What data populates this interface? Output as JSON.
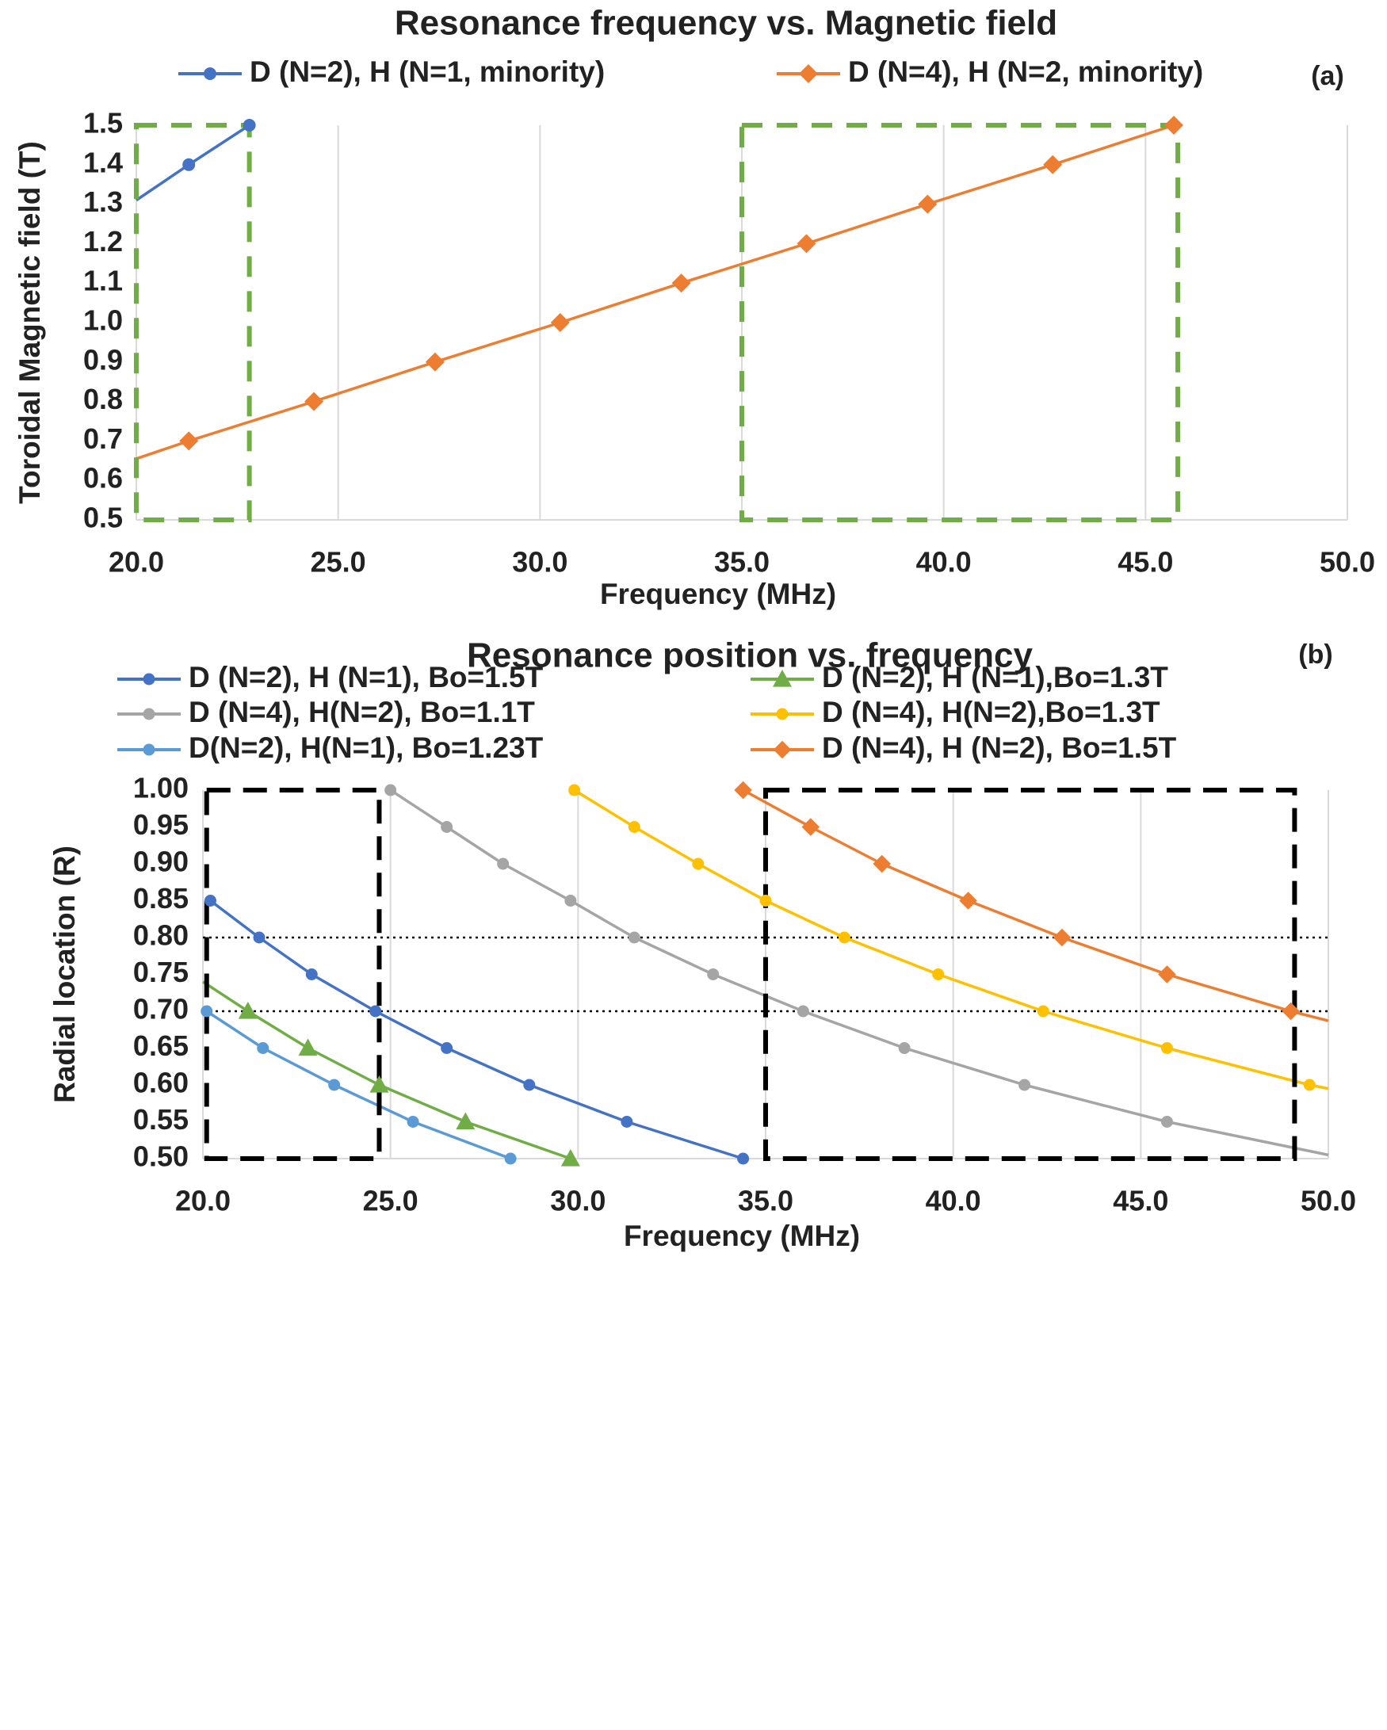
{
  "chart_data": [
    {
      "type": "line",
      "panel_label": "(a)",
      "title": "Resonance frequency vs. Magnetic field",
      "xlabel": "Frequency (MHz)",
      "ylabel": "Toroidal Magnetic field (T)",
      "xlim": [
        20,
        50
      ],
      "ylim": [
        0.5,
        1.5
      ],
      "x_ticks": [
        "20.0",
        "25.0",
        "30.0",
        "35.0",
        "40.0",
        "45.0",
        "50.0"
      ],
      "y_ticks": [
        "0.5",
        "0.6",
        "0.7",
        "0.8",
        "0.9",
        "1.0",
        "1.1",
        "1.2",
        "1.3",
        "1.4",
        "1.5"
      ],
      "grid": "vertical",
      "legend_position": "top",
      "series": [
        {
          "name": "D (N=2), H (N=1, minority)",
          "color": "#4472C4",
          "marker": "circle",
          "points": [
            [
              20.0,
              1.31
            ],
            [
              21.3,
              1.4
            ],
            [
              22.8,
              1.5
            ]
          ],
          "marked": [
            false,
            true,
            true
          ]
        },
        {
          "name": "D (N=4), H (N=2, minority)",
          "color": "#ED7D31",
          "marker": "diamond",
          "points": [
            [
              20.0,
              0.655
            ],
            [
              21.3,
              0.7
            ],
            [
              24.4,
              0.8
            ],
            [
              27.4,
              0.9
            ],
            [
              30.5,
              1.0
            ],
            [
              33.5,
              1.1
            ],
            [
              36.6,
              1.2
            ],
            [
              39.6,
              1.3
            ],
            [
              42.7,
              1.4
            ],
            [
              45.7,
              1.5
            ]
          ],
          "marked": [
            false,
            true,
            true,
            true,
            true,
            true,
            true,
            true,
            true,
            true
          ]
        }
      ],
      "regions": [
        {
          "color": "#70AD47",
          "x": [
            20.0,
            22.8
          ],
          "y": [
            0.5,
            1.5
          ]
        },
        {
          "color": "#70AD47",
          "x": [
            35.0,
            45.8
          ],
          "y": [
            0.5,
            1.5
          ]
        }
      ]
    },
    {
      "type": "line",
      "panel_label": "(b)",
      "title": "Resonance position vs. frequency",
      "xlabel": "Frequency (MHz)",
      "ylabel": "Radial location (R)",
      "xlim": [
        20,
        50
      ],
      "ylim": [
        0.5,
        1.0
      ],
      "x_ticks": [
        "20.0",
        "25.0",
        "30.0",
        "35.0",
        "40.0",
        "45.0",
        "50.0"
      ],
      "y_ticks": [
        "0.50",
        "0.55",
        "0.60",
        "0.65",
        "0.70",
        "0.75",
        "0.80",
        "0.85",
        "0.90",
        "0.95",
        "1.00"
      ],
      "grid": "vertical",
      "legend_position": "top",
      "series": [
        {
          "name": "D (N=2), H (N=1), Bo=1.5T",
          "color": "#4472C4",
          "marker": "circle",
          "points": [
            [
              20.2,
              0.85
            ],
            [
              21.5,
              0.8
            ],
            [
              22.9,
              0.75
            ],
            [
              24.6,
              0.7
            ],
            [
              26.5,
              0.65
            ],
            [
              28.7,
              0.6
            ],
            [
              31.3,
              0.55
            ],
            [
              34.4,
              0.5
            ]
          ],
          "marked": [
            true,
            true,
            true,
            true,
            true,
            true,
            true,
            true
          ]
        },
        {
          "name": "D (N=2), H (N=1),Bo=1.3T",
          "color": "#70AD47",
          "marker": "triangle",
          "points": [
            [
              20.0,
              0.74
            ],
            [
              21.2,
              0.7
            ],
            [
              22.8,
              0.65
            ],
            [
              24.7,
              0.6
            ],
            [
              27.0,
              0.55
            ],
            [
              29.8,
              0.5
            ]
          ],
          "marked": [
            false,
            true,
            true,
            true,
            true,
            true
          ]
        },
        {
          "name": "D (N=4), H(N=2), Bo=1.1T",
          "color": "#A5A5A5",
          "marker": "circle",
          "points": [
            [
              25.0,
              1.0
            ],
            [
              26.5,
              0.95
            ],
            [
              28.0,
              0.9
            ],
            [
              29.8,
              0.85
            ],
            [
              31.5,
              0.8
            ],
            [
              33.6,
              0.75
            ],
            [
              36.0,
              0.7
            ],
            [
              38.7,
              0.65
            ],
            [
              41.9,
              0.6
            ],
            [
              45.7,
              0.55
            ],
            [
              50.0,
              0.505
            ]
          ],
          "marked": [
            true,
            true,
            true,
            true,
            true,
            true,
            true,
            true,
            true,
            true,
            false
          ]
        },
        {
          "name": "D (N=4), H(N=2),Bo=1.3T",
          "color": "#FFC000",
          "marker": "circle",
          "points": [
            [
              29.9,
              1.0
            ],
            [
              31.5,
              0.95
            ],
            [
              33.2,
              0.9
            ],
            [
              35.0,
              0.85
            ],
            [
              37.1,
              0.8
            ],
            [
              39.6,
              0.75
            ],
            [
              42.4,
              0.7
            ],
            [
              45.7,
              0.65
            ],
            [
              49.5,
              0.6
            ],
            [
              50.0,
              0.595
            ]
          ],
          "marked": [
            true,
            true,
            true,
            true,
            true,
            true,
            true,
            true,
            true,
            false
          ]
        },
        {
          "name": "D(N=2), H(N=1), Bo=1.23T",
          "color": "#5B9BD5",
          "marker": "circle",
          "points": [
            [
              20.1,
              0.7
            ],
            [
              21.6,
              0.65
            ],
            [
              23.5,
              0.6
            ],
            [
              25.6,
              0.55
            ],
            [
              28.2,
              0.5
            ]
          ],
          "marked": [
            true,
            true,
            true,
            true,
            true
          ]
        },
        {
          "name": "D (N=4), H (N=2), Bo=1.5T",
          "color": "#ED7D31",
          "marker": "diamond",
          "points": [
            [
              34.4,
              1.0
            ],
            [
              36.2,
              0.95
            ],
            [
              38.1,
              0.9
            ],
            [
              40.4,
              0.85
            ],
            [
              42.9,
              0.8
            ],
            [
              45.7,
              0.75
            ],
            [
              49.0,
              0.7
            ],
            [
              50.0,
              0.687
            ]
          ],
          "marked": [
            true,
            true,
            true,
            true,
            true,
            true,
            true,
            false
          ]
        }
      ],
      "reference_lines": [
        {
          "y": 0.8,
          "style": "dotted",
          "color": "#000000"
        },
        {
          "y": 0.7,
          "style": "dotted",
          "color": "#000000"
        }
      ],
      "regions": [
        {
          "color": "#000000",
          "x": [
            20.1,
            24.7
          ],
          "y": [
            0.5,
            1.0
          ]
        },
        {
          "color": "#000000",
          "x": [
            35.0,
            49.1
          ],
          "y": [
            0.5,
            1.0
          ]
        }
      ]
    }
  ]
}
